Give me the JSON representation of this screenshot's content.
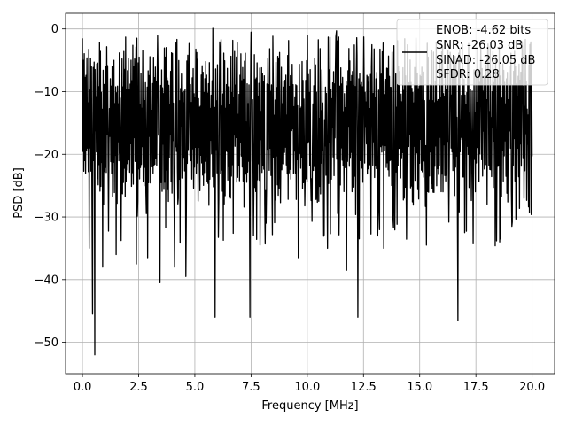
{
  "chart_data": {
    "type": "line",
    "title": "",
    "xlabel": "Frequency [MHz]",
    "ylabel": "PSD [dB]",
    "xlim": [
      -0.75,
      21.0
    ],
    "ylim": [
      -55,
      2.5
    ],
    "grid": true,
    "legend_position": "top-right",
    "x_ticks": [
      0.0,
      2.5,
      5.0,
      7.5,
      10.0,
      12.5,
      15.0,
      17.5,
      20.0
    ],
    "x_tick_labels": [
      "0.0",
      "2.5",
      "5.0",
      "7.5",
      "10.0",
      "12.5",
      "15.0",
      "17.5",
      "20.0"
    ],
    "y_ticks": [
      0,
      -10,
      -20,
      -30,
      -40,
      -50
    ],
    "y_tick_labels": [
      "0",
      "−10",
      "−20",
      "−30",
      "−40",
      "−50"
    ],
    "legend": {
      "line_color": "#000000",
      "entries": [
        "ENOB: -4.62 bits",
        "SNR: -26.03 dB",
        "SINAD: -26.05 dB",
        "SFDR: 0.28"
      ]
    },
    "series": [
      {
        "color": "#000000",
        "x_start": 0.0,
        "x_end": 20.0,
        "n_points": 1000,
        "band_upper_db": -5,
        "band_lower_db": -25,
        "peaks": [
          {
            "x": 0.0,
            "y": -1.5
          },
          {
            "x": 0.05,
            "y": -5
          },
          {
            "x": 0.1,
            "y": -21
          },
          {
            "x": 5.8,
            "y": 0.1
          },
          {
            "x": 7.5,
            "y": -0.5
          },
          {
            "x": 11.3,
            "y": -0.3
          },
          {
            "x": 11.4,
            "y": -1.3
          },
          {
            "x": 12.2,
            "y": -1.4
          }
        ],
        "dips": [
          {
            "x": 0.3,
            "y": -35
          },
          {
            "x": 0.45,
            "y": -45.5
          },
          {
            "x": 0.55,
            "y": -52
          },
          {
            "x": 0.9,
            "y": -38
          },
          {
            "x": 1.5,
            "y": -36
          },
          {
            "x": 2.4,
            "y": -37.5
          },
          {
            "x": 2.9,
            "y": -36.5
          },
          {
            "x": 3.45,
            "y": -40.5
          },
          {
            "x": 4.1,
            "y": -38
          },
          {
            "x": 4.6,
            "y": -39.5
          },
          {
            "x": 5.9,
            "y": -46
          },
          {
            "x": 7.45,
            "y": -46
          },
          {
            "x": 7.9,
            "y": -34.5
          },
          {
            "x": 9.6,
            "y": -36.5
          },
          {
            "x": 10.9,
            "y": -35
          },
          {
            "x": 11.75,
            "y": -38.5
          },
          {
            "x": 12.25,
            "y": -46
          },
          {
            "x": 13.4,
            "y": -35
          },
          {
            "x": 15.3,
            "y": -34.5
          },
          {
            "x": 16.7,
            "y": -46.5
          },
          {
            "x": 17.0,
            "y": -32.5
          },
          {
            "x": 18.6,
            "y": -33.5
          },
          {
            "x": 19.1,
            "y": -31.5
          }
        ]
      }
    ]
  }
}
